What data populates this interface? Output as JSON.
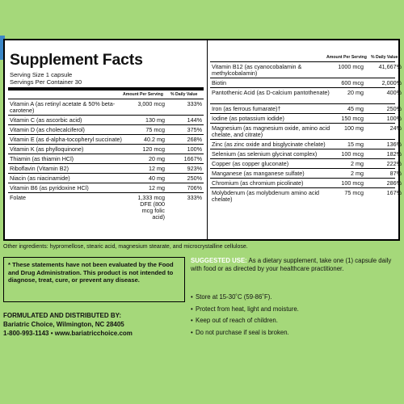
{
  "title": "Supplement Facts",
  "serving_size": "Serving Size 1 capsule",
  "servings_per_container": "Servings Per Container 30",
  "headers": {
    "amount": "Amount Per Serving",
    "dv": "% Daily Value"
  },
  "left_nutrients": [
    {
      "name": "Vitamin A (as retinyl acetate & 50% beta-carotene)",
      "amount": "3,000 mcg",
      "dv": "333%"
    },
    {
      "name": "Vitamin C (as ascorbic acid)",
      "amount": "130 mg",
      "dv": "144%"
    },
    {
      "name": "Vitamin D (as cholecalciferol)",
      "amount": "75 mcg",
      "dv": "375%"
    },
    {
      "name": "Vitamin E (as d-alpha-tocopheryl succinate)",
      "amount": "40.2 mg",
      "dv": "268%"
    },
    {
      "name": "Vitamin K (as phylloquinone)",
      "amount": "120 mcg",
      "dv": "100%"
    },
    {
      "name": "Thiamin (as thiamin HCl)",
      "amount": "20 mg",
      "dv": "1667%"
    },
    {
      "name": "Riboflavin (Vitamin B2)",
      "amount": "12 mg",
      "dv": "923%"
    },
    {
      "name": "Niacin (as niacinamide)",
      "amount": "40 mg",
      "dv": "250%"
    },
    {
      "name": "Vitamin B6 (as pyridoxine HCl)",
      "amount": "12 mg",
      "dv": "706%"
    },
    {
      "name": "Folate",
      "amount": "1,333 mcg DFE (800 mcg folic acid)",
      "dv": "333%"
    }
  ],
  "right_nutrients": [
    {
      "name": "Vitamin B12 (as cyanocobalamin & methylcobalamin)",
      "amount": "1000 mcg",
      "dv": "41,667%"
    },
    {
      "name": "Biotin",
      "amount": "600 mcg",
      "dv": "2,000%"
    },
    {
      "name": "Pantothenic Acid (as D-calcium pantothenate)",
      "amount": "20 mg",
      "dv": "400%"
    },
    {
      "name": "Iron (as ferrous fumarate)†",
      "amount": "45 mg",
      "dv": "250%"
    },
    {
      "name": "Iodine (as potassium iodide)",
      "amount": "150 mcg",
      "dv": "100%"
    },
    {
      "name": "Magnesium (as magnesium oxide, amino acid chelate, and citrate)",
      "amount": "100 mg",
      "dv": "24%"
    },
    {
      "name": "Zinc (as zinc oxide and bisglycinate chelate)",
      "amount": "15 mg",
      "dv": "136%"
    },
    {
      "name": "Selenium (as selenium glycinat complex)",
      "amount": "100 mcg",
      "dv": "182%"
    },
    {
      "name": "Copper (as copper gluconate)",
      "amount": "2 mg",
      "dv": "222%"
    },
    {
      "name": "Manganese (as manganese sulfate)",
      "amount": "2 mg",
      "dv": "87%"
    },
    {
      "name": "Chromium (as chromium picolinate)",
      "amount": "100 mcg",
      "dv": "286%"
    },
    {
      "name": "Molybdenum (as molybdenum amino acid chelate)",
      "amount": "75 mcg",
      "dv": "167%"
    }
  ],
  "other_ingredients": "Other ingredients: hypromellose, stearic acid, magnesium stearate, and microcrystalline cellulose.",
  "disclaimer": "* These statements have not been evaluated by the Food and Drug Administration. This product is not intended to diagnose, treat, cure, or prevent any disease.",
  "suggested_use": {
    "label": "Suggested Use:",
    "text": "As a dietary supplement, take one (1) capsule daily with food or as directed by your healthcare practitioner."
  },
  "storage": [
    "Store at 15-30˚C (59-86˚F).",
    "Protect from heat, light and moisture.",
    "Keep out of reach of children.",
    "Do not purchase if seal is broken."
  ],
  "distributor": {
    "heading": "Formulated and Distributed by:",
    "address": "Bariatric Choice, Wilmington, NC 28405",
    "contact": "1-800-993-1143 • www.bariatricchoice.com"
  },
  "colors": {
    "background": "#a5d87a",
    "accent_tab": "#3b86c6",
    "panel": "#ffffff"
  }
}
